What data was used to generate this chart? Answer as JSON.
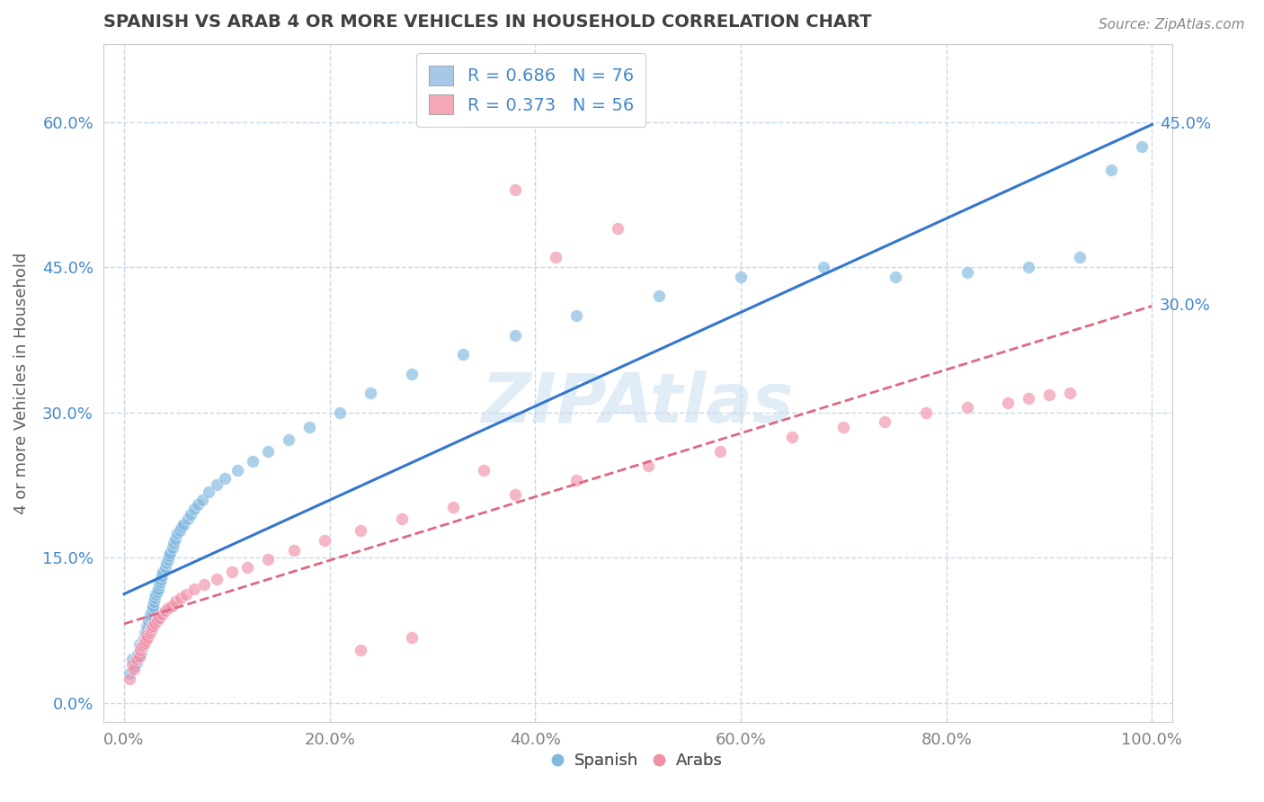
{
  "title": "SPANISH VS ARAB 4 OR MORE VEHICLES IN HOUSEHOLD CORRELATION CHART",
  "source_text": "Source: ZipAtlas.com",
  "xlabel": "",
  "ylabel": "4 or more Vehicles in Household",
  "xlim": [
    -0.02,
    1.02
  ],
  "ylim": [
    -0.02,
    0.68
  ],
  "xticks": [
    0.0,
    0.2,
    0.4,
    0.6,
    0.8,
    1.0
  ],
  "xtick_labels": [
    "0.0%",
    "20.0%",
    "40.0%",
    "60.0%",
    "80.0%",
    "100.0%"
  ],
  "yticks": [
    0.0,
    0.15,
    0.3,
    0.45,
    0.6
  ],
  "ytick_labels": [
    "0.0%",
    "15.0%",
    "30.0%",
    "45.0%",
    "60.0%"
  ],
  "legend_entries": [
    {
      "label": "R = 0.686   N = 76",
      "color": "#a8c8e8"
    },
    {
      "label": "R = 0.373   N = 56",
      "color": "#f4a8b8"
    }
  ],
  "legend_bottom_labels": [
    "Spanish",
    "Arabs"
  ],
  "watermark": "ZIPAtlas",
  "background_color": "#ffffff",
  "grid_color": "#c8d8e8",
  "title_color": "#404040",
  "source_color": "#888888",
  "axis_label_color": "#606060",
  "tick_color_x": "#808080",
  "tick_color_y": "#4488cc",
  "blue_dot_color": "#80b8e0",
  "pink_dot_color": "#f090a8",
  "blue_line_color": "#3377cc",
  "pink_line_color": "#e06880",
  "blue_line_end_label": "45.0%",
  "pink_line_end_label": "30.0%",
  "spanish_x": [
    0.005,
    0.008,
    0.01,
    0.012,
    0.013,
    0.015,
    0.015,
    0.016,
    0.017,
    0.018,
    0.018,
    0.019,
    0.02,
    0.02,
    0.021,
    0.022,
    0.022,
    0.023,
    0.024,
    0.024,
    0.025,
    0.025,
    0.026,
    0.027,
    0.028,
    0.028,
    0.029,
    0.03,
    0.031,
    0.032,
    0.033,
    0.034,
    0.035,
    0.036,
    0.037,
    0.038,
    0.04,
    0.041,
    0.043,
    0.044,
    0.045,
    0.047,
    0.048,
    0.05,
    0.052,
    0.054,
    0.056,
    0.058,
    0.062,
    0.065,
    0.068,
    0.072,
    0.076,
    0.082,
    0.09,
    0.098,
    0.11,
    0.125,
    0.14,
    0.16,
    0.18,
    0.21,
    0.24,
    0.28,
    0.33,
    0.38,
    0.44,
    0.52,
    0.6,
    0.68,
    0.75,
    0.82,
    0.88,
    0.93,
    0.96,
    0.99
  ],
  "spanish_y": [
    0.03,
    0.045,
    0.038,
    0.042,
    0.05,
    0.048,
    0.06,
    0.055,
    0.052,
    0.058,
    0.065,
    0.062,
    0.068,
    0.072,
    0.07,
    0.075,
    0.08,
    0.078,
    0.082,
    0.085,
    0.088,
    0.092,
    0.09,
    0.095,
    0.098,
    0.1,
    0.105,
    0.108,
    0.112,
    0.115,
    0.118,
    0.122,
    0.125,
    0.128,
    0.132,
    0.135,
    0.14,
    0.145,
    0.148,
    0.152,
    0.155,
    0.16,
    0.165,
    0.17,
    0.175,
    0.178,
    0.182,
    0.185,
    0.19,
    0.195,
    0.2,
    0.205,
    0.21,
    0.218,
    0.225,
    0.232,
    0.24,
    0.25,
    0.26,
    0.272,
    0.285,
    0.3,
    0.32,
    0.34,
    0.36,
    0.38,
    0.4,
    0.42,
    0.44,
    0.45,
    0.44,
    0.445,
    0.45,
    0.46,
    0.55,
    0.575
  ],
  "arab_x": [
    0.005,
    0.008,
    0.01,
    0.012,
    0.015,
    0.016,
    0.017,
    0.018,
    0.02,
    0.021,
    0.022,
    0.023,
    0.025,
    0.026,
    0.027,
    0.028,
    0.03,
    0.032,
    0.034,
    0.037,
    0.04,
    0.043,
    0.046,
    0.05,
    0.055,
    0.06,
    0.068,
    0.078,
    0.09,
    0.105,
    0.12,
    0.14,
    0.165,
    0.195,
    0.23,
    0.27,
    0.32,
    0.38,
    0.44,
    0.51,
    0.58,
    0.65,
    0.7,
    0.74,
    0.78,
    0.82,
    0.86,
    0.88,
    0.9,
    0.92,
    0.42,
    0.48,
    0.38,
    0.35,
    0.28,
    0.23
  ],
  "arab_y": [
    0.025,
    0.04,
    0.035,
    0.045,
    0.048,
    0.055,
    0.058,
    0.06,
    0.062,
    0.065,
    0.07,
    0.068,
    0.072,
    0.075,
    0.078,
    0.08,
    0.082,
    0.085,
    0.088,
    0.092,
    0.095,
    0.098,
    0.1,
    0.105,
    0.108,
    0.112,
    0.118,
    0.122,
    0.128,
    0.135,
    0.14,
    0.148,
    0.158,
    0.168,
    0.178,
    0.19,
    0.202,
    0.215,
    0.23,
    0.245,
    0.26,
    0.275,
    0.285,
    0.29,
    0.3,
    0.305,
    0.31,
    0.315,
    0.318,
    0.32,
    0.46,
    0.49,
    0.53,
    0.24,
    0.068,
    0.055
  ]
}
